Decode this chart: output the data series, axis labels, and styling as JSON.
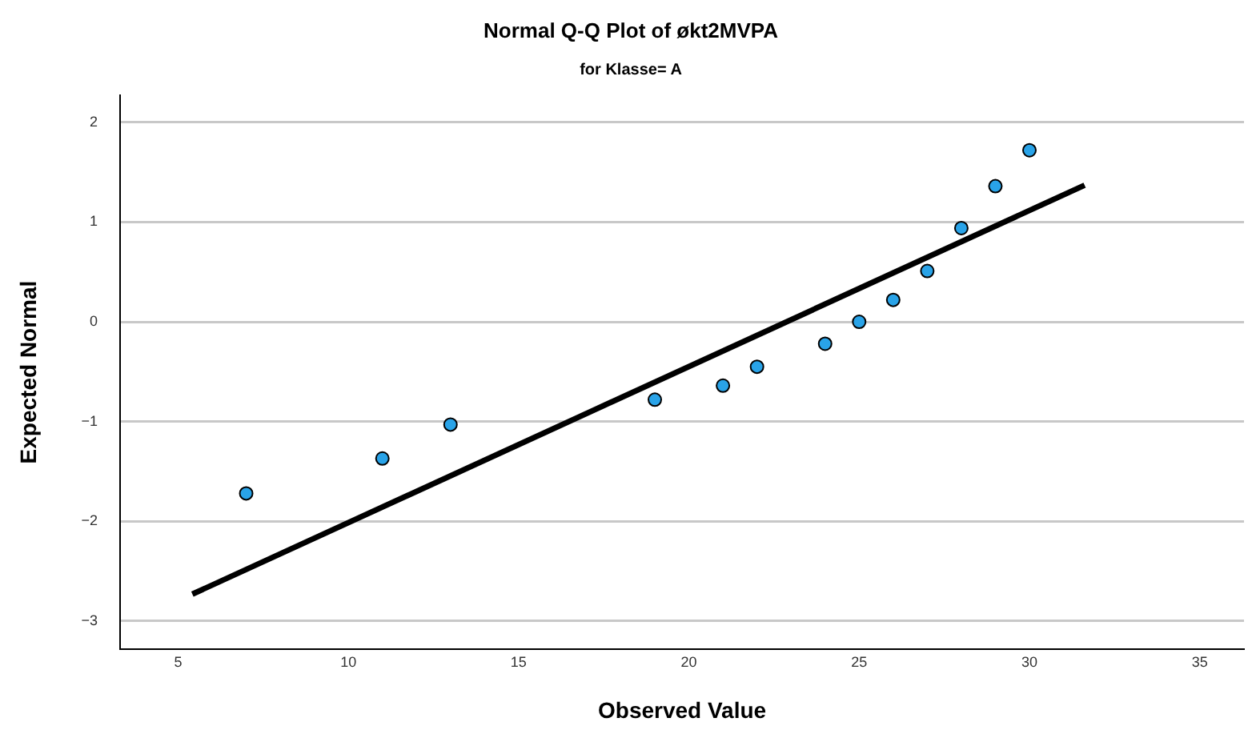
{
  "chart_data": {
    "type": "scatter",
    "title": "Normal Q-Q Plot of økt2MVPA",
    "subtitle": "for Klasse= A",
    "xlabel": "Observed Value",
    "ylabel": "Expected Normal",
    "xlim": [
      3.3,
      36.3
    ],
    "xticks": [
      5,
      10,
      15,
      20,
      25,
      30,
      35
    ],
    "ylim": [
      -3.28,
      2.27
    ],
    "yticks": [
      -3,
      -2,
      -1,
      0,
      1,
      2
    ],
    "grid": "y",
    "legend": false,
    "series": [
      {
        "marker": "circle",
        "color": "#29a3e8",
        "x": [
          7,
          11,
          13,
          19,
          21,
          22,
          24,
          25,
          26,
          27,
          28,
          29,
          30
        ],
        "values": [
          -1.72,
          -1.37,
          -1.03,
          -0.78,
          -0.64,
          -0.45,
          -0.22,
          0,
          0.22,
          0.51,
          0.94,
          1.36,
          1.72
        ]
      },
      {
        "type": "line",
        "marker": "none",
        "color": "#000000",
        "x": [
          5.42,
          31.62
        ],
        "values": [
          -2.73,
          1.37
        ]
      }
    ]
  }
}
